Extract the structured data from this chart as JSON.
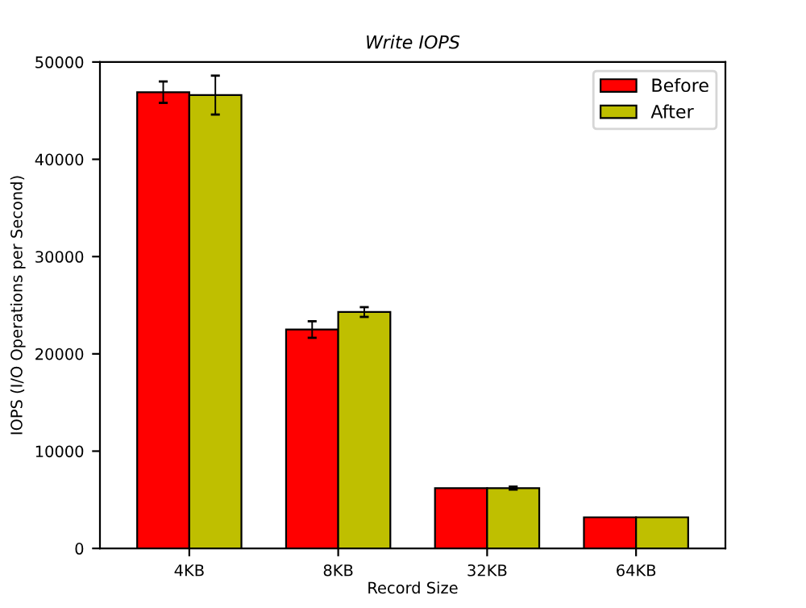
{
  "chart_data": {
    "type": "bar",
    "title": "Write IOPS",
    "xlabel": "Record Size",
    "ylabel": "IOPS (I/O Operations per Second)",
    "categories": [
      "4KB",
      "8KB",
      "32KB",
      "64KB"
    ],
    "series": [
      {
        "name": "Before",
        "color": "#ff0000",
        "values": [
          46900,
          22500,
          6200,
          3200
        ],
        "errors": [
          1100,
          850,
          null,
          null
        ]
      },
      {
        "name": "After",
        "color": "#bfbf00",
        "values": [
          46600,
          24300,
          6200,
          3200
        ],
        "errors": [
          2000,
          500,
          150,
          null
        ]
      }
    ],
    "ylim": [
      0,
      50000
    ],
    "yticks": [
      0,
      10000,
      20000,
      30000,
      40000,
      50000
    ],
    "legend": "top right",
    "grid": false
  }
}
